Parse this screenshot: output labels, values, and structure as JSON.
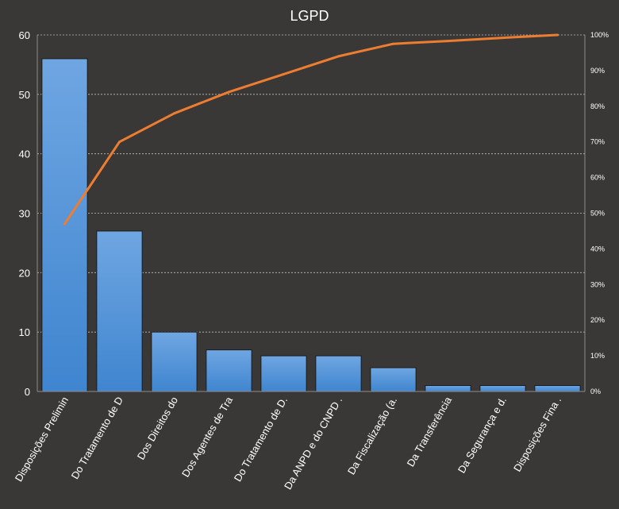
{
  "chart_data": {
    "type": "bar",
    "title": "LGPD",
    "categories": [
      "Disposições Prelimin",
      "Do Tratamento de D",
      "Dos Direitos do",
      "Dos Agentes de Tra",
      "Do Tratamento de D.",
      "Da ANPD e do CNPD .",
      "Da Fiscalização (a.",
      "Da Transferência",
      "Da Segurança e d.",
      "Disposições Fina ."
    ],
    "series": [
      {
        "type": "bar",
        "values": [
          56,
          27,
          10,
          7,
          6,
          6,
          4,
          1,
          1,
          1
        ]
      },
      {
        "type": "line",
        "axis": "secondary",
        "values": [
          47,
          70,
          78,
          84,
          89,
          94,
          97.5,
          98.3,
          99.2,
          100
        ]
      }
    ],
    "ylim": [
      0,
      60
    ],
    "yticks": [
      "0",
      "10",
      "20",
      "30",
      "40",
      "50",
      "60"
    ],
    "y2lim": [
      0,
      100
    ],
    "y2ticks": [
      "0%",
      "10%",
      "20%",
      "30%",
      "40%",
      "50%",
      "60%",
      "70%",
      "80%",
      "90%",
      "100%"
    ],
    "grid": true,
    "colors": {
      "background": "#3a3836",
      "bar_top": "#6fa6e2",
      "bar_bottom": "#3f85cf",
      "bar_stroke": "#1c1c1c",
      "line": "#ed7d31",
      "grid": "#bfbfbf",
      "text": "#ffffff",
      "axis": "#8c8c8c"
    }
  }
}
